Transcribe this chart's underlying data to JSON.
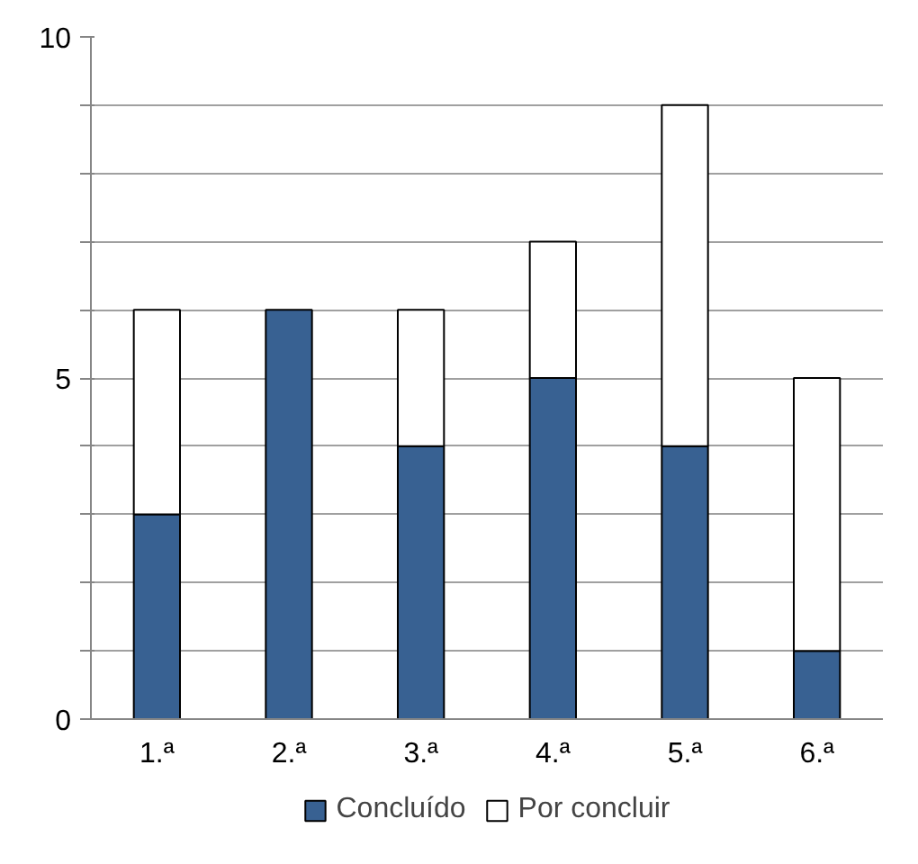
{
  "chart_data": {
    "type": "bar",
    "stacked": true,
    "categories": [
      "1.ª",
      "2.ª",
      "3.ª",
      "4.ª",
      "5.ª",
      "6.ª"
    ],
    "series": [
      {
        "name": "Concluído",
        "color": "#386192",
        "values": [
          3,
          6,
          4,
          5,
          4,
          1
        ]
      },
      {
        "name": "Por concluir",
        "color": "#ffffff",
        "values": [
          3,
          0,
          2,
          2,
          5,
          4
        ]
      }
    ],
    "ylim": [
      0,
      10
    ],
    "yticks": [
      0,
      {
        "value": 1,
        "label": null
      },
      {
        "value": 2,
        "label": null
      },
      {
        "value": 3,
        "label": null
      },
      {
        "value": 4,
        "label": null
      },
      5,
      {
        "value": 6,
        "label": null
      },
      {
        "value": 7,
        "label": null
      },
      {
        "value": 8,
        "label": null
      },
      {
        "value": 9,
        "label": null
      },
      10
    ],
    "grid": "y",
    "legend": "bottom"
  }
}
